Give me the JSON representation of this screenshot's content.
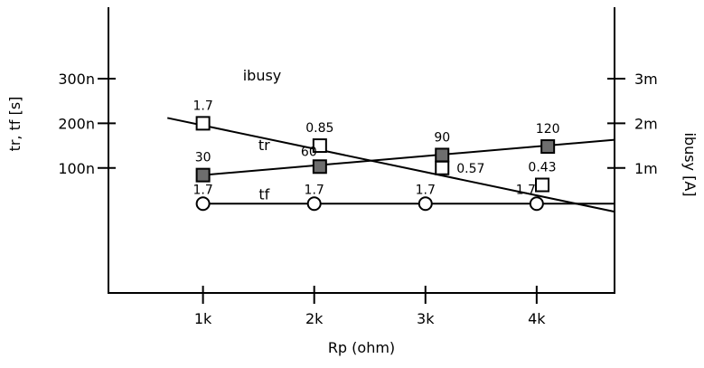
{
  "chart_data": {
    "type": "line",
    "xlabel": "Rp (ohm)",
    "ylabel_left": "tr, tf  [s]",
    "ylabel_right": "ibusy [A]",
    "annotation": "ibusy",
    "x_ticks": [
      {
        "value": 1000,
        "label": "1k"
      },
      {
        "value": 2000,
        "label": "2k"
      },
      {
        "value": 3000,
        "label": "3k"
      },
      {
        "value": 4000,
        "label": "4k"
      }
    ],
    "y_left_ticks": [
      {
        "value": 1e-07,
        "label": "100n"
      },
      {
        "value": 2e-07,
        "label": "200n"
      },
      {
        "value": 3e-07,
        "label": "300n"
      }
    ],
    "y_right_ticks": [
      {
        "value": 0.001,
        "label": "1m"
      },
      {
        "value": 0.002,
        "label": "2m"
      },
      {
        "value": 0.003,
        "label": "3m"
      }
    ],
    "xlim": [
      150,
      4700
    ],
    "ylim_left": [
      -1.8e-07,
      4.6e-07
    ],
    "ylim_right": [
      -0.0018,
      0.0046
    ],
    "series": [
      {
        "name": "tr",
        "axis": "left",
        "marker": "square-open",
        "line": [
          [
            680,
            2.12e-07
          ],
          [
            4700,
            2e-09
          ]
        ],
        "points": [
          {
            "x": 1000,
            "y": 2e-07,
            "label": "1.7",
            "label_pos": "above"
          },
          {
            "x": 2050,
            "y": 1.5e-07,
            "label": "0.85",
            "label_pos": "above"
          },
          {
            "x": 3150,
            "y": 1e-07,
            "label": "0.57",
            "label_pos": "right"
          },
          {
            "x": 4050,
            "y": 6.2e-08,
            "label": "0.43",
            "label_pos": "above"
          }
        ]
      },
      {
        "name": "tf",
        "axis": "left",
        "marker": "circle-open",
        "line": [
          [
            1000,
            2e-08
          ],
          [
            4700,
            2e-08
          ]
        ],
        "points": [
          {
            "x": 1000,
            "y": 2e-08,
            "label": "1.7",
            "label_pos": "above"
          },
          {
            "x": 2000,
            "y": 2e-08,
            "label": "1.7",
            "label_pos": "above"
          },
          {
            "x": 3000,
            "y": 2e-08,
            "label": "1.7",
            "label_pos": "above"
          },
          {
            "x": 4000,
            "y": 2e-08,
            "label": "1.7",
            "label_pos": "above-left"
          }
        ]
      },
      {
        "name": "ibusy",
        "axis": "right",
        "marker": "square-filled",
        "line": [
          [
            1000,
            0.00084
          ],
          [
            4700,
            0.00163
          ]
        ],
        "points": [
          {
            "x": 1000,
            "y": 0.00084,
            "label": "30",
            "label_pos": "above"
          },
          {
            "x": 2050,
            "y": 0.00103,
            "label": "60",
            "label_pos": "above-left"
          },
          {
            "x": 3150,
            "y": 0.00129,
            "label": "90",
            "label_pos": "above"
          },
          {
            "x": 4100,
            "y": 0.00148,
            "label": "120",
            "label_pos": "above"
          }
        ]
      }
    ],
    "series_labels": [
      {
        "text": "tr",
        "x": 1550,
        "y": 1.4e-07
      },
      {
        "text": "tf",
        "x": 1550,
        "y": 3e-08
      }
    ],
    "colors": {
      "filled_marker": "#6e6e6e",
      "line": "#000000",
      "background": "#ffffff"
    }
  }
}
